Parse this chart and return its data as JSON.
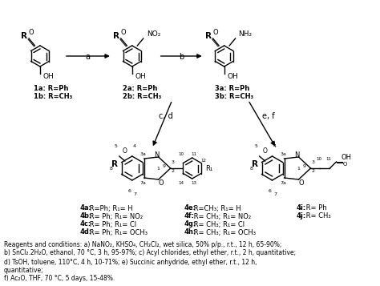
{
  "title": "",
  "background_color": "#ffffff",
  "fig_width": 4.74,
  "fig_height": 3.57,
  "dpi": 100,
  "compound_labels": {
    "1a": "1a: R=Ph",
    "1b": "1b: R=CH₃",
    "2a": "2a: R=Ph",
    "2b": "2b: R=CH₃",
    "3a": "3a: R=Ph",
    "3b": "3b: R=CH₃"
  },
  "series4_col1": [
    "4a: R=Ph; R₁= H",
    "4b: R= Ph; R₁= NO₂",
    "4c: R= Ph; R₁= Cl",
    "4d: R= Ph; R₁= OCH₃"
  ],
  "series4_col2": [
    "4e: R=CH₃; R₁= H",
    "4f: R= CH₃; R₁= NO₂",
    "4g: R= CH₃; R₁= Cl",
    "4h: R= CH₃; R₁= OCH₃"
  ],
  "series4_col3": [
    "4i: R= Ph",
    "4j: R= CH₃"
  ],
  "reagents_line1": "Reagents and conditions: a) NaNO₂, KHSO₄, CH₂Cl₂, wet silica, 50% p/p., r.t., 12 h, 65-90%;",
  "reagents_line2": "b) SnCl₂.2H₂O, ethanol, 70 °C, 3 h, 95-97%; c) Acyl chlorides, ethyl ether, r.t., 2 h, quantitative;",
  "reagents_line3": "d) TsOH, toluene, 110°C, 4 h, 10-71%; e) Succinic anhydride, ethyl ether, r.t., 12 h,",
  "reagents_line4": "quantitative;",
  "reagents_line5": "f) Ac₂O, THF, 70 °C, 5 days, 15-48%."
}
